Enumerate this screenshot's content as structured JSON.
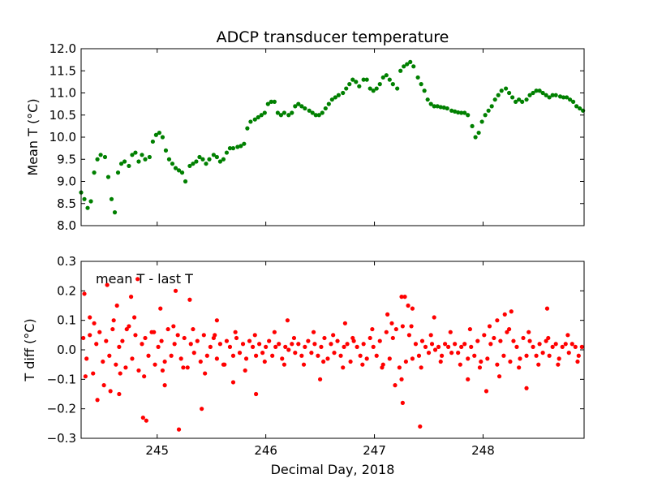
{
  "chart_data": [
    {
      "type": "scatter",
      "title": "ADCP transducer temperature",
      "xlabel": "",
      "ylabel": "Mean T (°C)",
      "xlim": [
        244.3,
        248.93
      ],
      "ylim": [
        8.0,
        12.0
      ],
      "yticks": [
        "8.0",
        "8.5",
        "9.0",
        "9.5",
        "10.0",
        "10.5",
        "11.0",
        "11.5",
        "12.0"
      ],
      "grid": false,
      "series": [
        {
          "color": "#008000",
          "x": [
            244.3,
            244.33,
            244.36,
            244.39,
            244.42,
            244.45,
            244.48,
            244.52,
            244.55,
            244.58,
            244.61,
            244.64,
            244.67,
            244.7,
            244.74,
            244.77,
            244.8,
            244.83,
            244.86,
            244.89,
            244.93,
            244.96,
            244.99,
            245.02,
            245.05,
            245.08,
            245.11,
            245.14,
            245.17,
            245.2,
            245.23,
            245.26,
            245.3,
            245.33,
            245.36,
            245.39,
            245.42,
            245.45,
            245.48,
            245.52,
            245.55,
            245.58,
            245.61,
            245.64,
            245.67,
            245.7,
            245.74,
            245.77,
            245.8,
            245.83,
            245.86,
            245.9,
            245.93,
            245.96,
            245.99,
            246.02,
            246.05,
            246.08,
            246.11,
            246.14,
            246.17,
            246.21,
            246.24,
            246.27,
            246.3,
            246.33,
            246.36,
            246.4,
            246.43,
            246.46,
            246.49,
            246.52,
            246.55,
            246.58,
            246.61,
            246.64,
            246.67,
            246.71,
            246.74,
            246.77,
            246.8,
            246.83,
            246.86,
            246.9,
            246.93,
            246.96,
            246.99,
            247.02,
            247.05,
            247.08,
            247.11,
            247.14,
            247.17,
            247.21,
            247.24,
            247.27,
            247.3,
            247.33,
            247.36,
            247.4,
            247.43,
            247.46,
            247.49,
            247.52,
            247.55,
            247.58,
            247.61,
            247.64,
            247.67,
            247.71,
            247.74,
            247.77,
            247.8,
            247.83,
            247.86,
            247.9,
            247.93,
            247.96,
            247.99,
            248.02,
            248.05,
            248.08,
            248.11,
            248.14,
            248.17,
            248.21,
            248.24,
            248.27,
            248.3,
            248.33,
            248.36,
            248.4,
            248.43,
            248.46,
            248.49,
            248.52,
            248.55,
            248.58,
            248.61,
            248.64,
            248.67,
            248.71,
            248.74,
            248.77,
            248.8,
            248.83,
            248.86,
            248.89,
            248.92
          ],
          "y": [
            8.75,
            8.6,
            8.4,
            8.55,
            9.2,
            9.5,
            9.6,
            9.55,
            9.1,
            8.6,
            8.3,
            9.2,
            9.4,
            9.45,
            9.35,
            9.6,
            9.65,
            9.45,
            9.6,
            9.5,
            9.55,
            9.9,
            10.05,
            10.1,
            10.0,
            9.7,
            9.5,
            9.4,
            9.3,
            9.25,
            9.2,
            9.0,
            9.35,
            9.4,
            9.45,
            9.55,
            9.5,
            9.4,
            9.5,
            9.6,
            9.55,
            9.45,
            9.5,
            9.65,
            9.75,
            9.75,
            9.78,
            9.8,
            9.85,
            10.2,
            10.35,
            10.4,
            10.45,
            10.5,
            10.55,
            10.75,
            10.8,
            10.8,
            10.55,
            10.5,
            10.55,
            10.5,
            10.55,
            10.7,
            10.75,
            10.7,
            10.65,
            10.6,
            10.55,
            10.5,
            10.5,
            10.55,
            10.65,
            10.75,
            10.85,
            10.9,
            10.95,
            11.0,
            11.1,
            11.2,
            11.3,
            11.25,
            11.15,
            11.3,
            11.3,
            11.1,
            11.05,
            11.1,
            11.2,
            11.35,
            11.4,
            11.3,
            11.2,
            11.1,
            11.5,
            11.6,
            11.65,
            11.7,
            11.6,
            11.35,
            11.2,
            11.05,
            10.85,
            10.75,
            10.7,
            10.7,
            10.68,
            10.67,
            10.65,
            10.6,
            10.58,
            10.56,
            10.55,
            10.55,
            10.5,
            10.25,
            10.0,
            10.1,
            10.35,
            10.5,
            10.6,
            10.7,
            10.85,
            10.95,
            11.05,
            11.1,
            11.0,
            10.9,
            10.8,
            10.85,
            10.8,
            10.85,
            10.95,
            11.0,
            11.05,
            11.05,
            11.0,
            10.95,
            10.9,
            10.95,
            10.95,
            10.92,
            10.9,
            10.9,
            10.85,
            10.8,
            10.7,
            10.65,
            10.6
          ]
        }
      ]
    },
    {
      "type": "scatter",
      "title": "",
      "xlabel": "Decimal Day, 2018",
      "ylabel": "T diff (°C)",
      "xlim": [
        244.3,
        248.93
      ],
      "ylim": [
        -0.3,
        0.3
      ],
      "yticks": [
        "−0.3",
        "−0.2",
        "−0.1",
        "0.0",
        "0.1",
        "0.2",
        "0.3"
      ],
      "xticks": [
        245,
        246,
        247,
        248
      ],
      "xtick_labels": [
        "245",
        "246",
        "247",
        "248"
      ],
      "annotation": "mean T - last T",
      "grid": false,
      "series": [
        {
          "color": "#ff0000",
          "x": [
            244.32,
            244.35,
            244.38,
            244.41,
            244.44,
            244.47,
            244.5,
            244.53,
            244.56,
            244.59,
            244.62,
            244.65,
            244.68,
            244.71,
            244.74,
            244.77,
            244.8,
            244.83,
            244.86,
            244.89,
            244.92,
            244.95,
            244.98,
            245.01,
            245.04,
            245.07,
            245.1,
            245.13,
            245.16,
            245.19,
            245.22,
            245.25,
            245.28,
            245.31,
            245.34,
            245.37,
            245.4,
            245.43,
            245.46,
            245.49,
            245.52,
            245.55,
            245.58,
            245.61,
            245.64,
            245.67,
            245.7,
            245.73,
            245.76,
            245.79,
            245.82,
            245.85,
            245.88,
            245.91,
            245.94,
            245.97,
            246.0,
            246.03,
            246.06,
            246.09,
            246.12,
            246.15,
            246.18,
            246.21,
            246.24,
            246.27,
            246.3,
            246.33,
            246.36,
            246.39,
            246.42,
            246.45,
            246.48,
            246.51,
            246.54,
            246.57,
            246.6,
            246.63,
            246.66,
            246.69,
            246.72,
            246.75,
            246.78,
            246.81,
            246.84,
            246.87,
            246.9,
            246.93,
            246.96,
            246.99,
            247.02,
            247.05,
            247.08,
            247.11,
            247.14,
            247.17,
            247.2,
            247.23,
            247.26,
            247.29,
            247.32,
            247.35,
            247.38,
            247.41,
            247.44,
            247.47,
            247.5,
            247.53,
            247.56,
            247.59,
            247.62,
            247.65,
            247.68,
            247.71,
            247.74,
            247.77,
            247.8,
            247.83,
            247.86,
            247.89,
            247.92,
            247.95,
            247.98,
            248.01,
            248.04,
            248.07,
            248.1,
            248.13,
            248.16,
            248.19,
            248.22,
            248.25,
            248.28,
            248.31,
            248.34,
            248.37,
            248.4,
            248.43,
            248.46,
            248.49,
            248.52,
            248.55,
            248.58,
            248.61,
            248.64,
            248.67,
            248.7,
            248.73,
            248.76,
            248.79,
            248.82,
            248.85,
            248.88,
            248.91,
            244.34,
            244.42,
            244.51,
            244.6,
            244.66,
            244.72,
            244.79,
            244.88,
            244.97,
            245.05,
            245.15,
            245.24,
            245.33,
            245.44,
            245.53,
            245.62,
            245.72,
            245.81,
            245.9,
            245.99,
            246.08,
            246.17,
            246.26,
            246.35,
            246.44,
            246.53,
            246.62,
            246.71,
            246.8,
            246.89,
            246.98,
            247.07,
            247.16,
            247.25,
            247.34,
            247.43,
            247.52,
            247.61,
            247.7,
            247.79,
            247.88,
            247.97,
            248.06,
            248.15,
            248.24,
            248.33,
            248.42,
            248.51,
            248.6,
            248.69,
            248.78,
            248.87,
            244.33,
            244.38,
            244.45,
            244.54,
            244.57,
            244.63,
            244.65,
            244.76,
            244.82,
            244.87,
            244.9,
            245.03,
            245.07,
            245.17,
            245.2,
            245.3,
            245.41,
            245.55,
            245.7,
            245.91,
            246.2,
            246.5,
            246.73,
            247.12,
            247.19,
            247.25,
            247.26,
            247.28,
            247.31,
            247.35,
            247.42,
            247.55,
            247.86,
            248.03,
            248.13,
            248.2,
            248.26,
            248.4,
            248.59
          ],
          "y": [
            0.04,
            -0.03,
            0.05,
            -0.08,
            0.02,
            0.06,
            -0.04,
            0.03,
            -0.02,
            0.07,
            -0.05,
            0.01,
            0.03,
            -0.06,
            0.08,
            -0.03,
            0.05,
            -0.07,
            0.02,
            0.04,
            -0.02,
            0.06,
            -0.05,
            0.01,
            0.03,
            -0.04,
            0.07,
            -0.02,
            0.02,
            0.05,
            -0.03,
            0.04,
            -0.06,
            0.02,
            -0.01,
            0.03,
            -0.04,
            0.05,
            -0.02,
            0.01,
            0.04,
            -0.03,
            0.02,
            -0.05,
            0.03,
            0.01,
            -0.02,
            0.04,
            -0.01,
            0.02,
            -0.03,
            0.03,
            0.01,
            -0.02,
            0.02,
            -0.01,
            0.01,
            0.03,
            -0.02,
            0.01,
            0.02,
            -0.03,
            0.01,
            0.0,
            0.02,
            -0.01,
            0.02,
            -0.02,
            0.01,
            0.03,
            -0.01,
            0.02,
            -0.02,
            0.01,
            0.04,
            -0.03,
            0.02,
            -0.01,
            0.03,
            -0.02,
            0.01,
            0.02,
            -0.04,
            0.03,
            0.01,
            -0.02,
            0.02,
            -0.03,
            0.04,
            0.01,
            -0.02,
            0.03,
            -0.05,
            0.06,
            -0.03,
            0.04,
            0.07,
            -0.06,
            0.08,
            -0.04,
            0.05,
            -0.03,
            0.02,
            -0.02,
            0.03,
            0.01,
            -0.01,
            0.02,
            0.0,
            0.01,
            -0.02,
            0.02,
            0.01,
            -0.01,
            0.02,
            -0.01,
            0.01,
            0.02,
            -0.03,
            0.01,
            -0.02,
            0.03,
            -0.04,
            0.05,
            -0.03,
            0.02,
            0.04,
            -0.05,
            0.03,
            -0.02,
            0.06,
            -0.04,
            0.03,
            0.01,
            -0.03,
            0.04,
            -0.02,
            0.03,
            0.01,
            -0.02,
            0.02,
            -0.01,
            0.03,
            -0.02,
            0.01,
            0.02,
            -0.03,
            0.01,
            0.02,
            -0.01,
            0.02,
            0.01,
            -0.02,
            0.01,
            -0.09,
            0.09,
            -0.12,
            0.1,
            -0.08,
            0.07,
            0.11,
            -0.09,
            0.06,
            -0.07,
            0.08,
            -0.06,
            0.07,
            -0.08,
            0.05,
            -0.05,
            0.06,
            -0.07,
            0.05,
            -0.04,
            0.06,
            -0.05,
            0.04,
            -0.05,
            0.06,
            -0.04,
            0.05,
            -0.06,
            0.04,
            -0.05,
            0.07,
            -0.06,
            0.09,
            -0.1,
            0.08,
            -0.06,
            0.05,
            -0.04,
            0.06,
            -0.05,
            0.07,
            -0.06,
            0.08,
            -0.09,
            0.07,
            -0.06,
            0.06,
            -0.05,
            0.04,
            -0.05,
            0.05,
            -0.04,
            0.19,
            0.11,
            -0.17,
            0.22,
            -0.14,
            0.15,
            -0.15,
            0.18,
            0.24,
            -0.23,
            -0.24,
            0.14,
            -0.12,
            0.2,
            -0.27,
            0.17,
            -0.2,
            0.1,
            -0.11,
            -0.15,
            0.1,
            -0.1,
            0.09,
            0.12,
            -0.12,
            0.18,
            -0.18,
            0.18,
            0.15,
            0.14,
            -0.26,
            0.11,
            -0.1,
            -0.14,
            0.1,
            0.12,
            0.13,
            -0.13,
            0.14
          ]
        }
      ]
    }
  ]
}
